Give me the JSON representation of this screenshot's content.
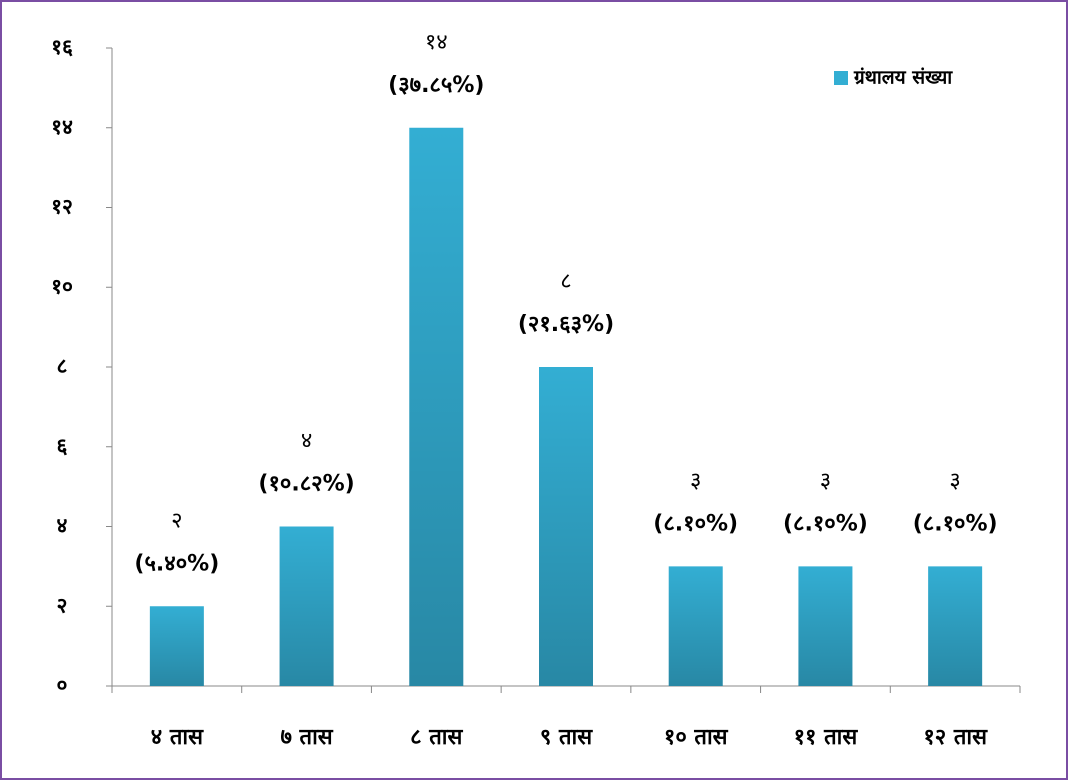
{
  "chart_data": {
    "type": "bar",
    "categories": [
      "४ तास",
      "७ तास",
      "८ तास",
      "९ तास",
      "१० तास",
      "११ तास",
      "१२ तास"
    ],
    "series": [
      {
        "name": "ग्रंथालय संख्या",
        "color": "#33aed3",
        "values": [
          2,
          4,
          14,
          8,
          3,
          3,
          3
        ],
        "value_labels": [
          "२",
          "४",
          "१४",
          "८",
          "३",
          "३",
          "३"
        ],
        "percentages": [
          5.4,
          10.82,
          37.85,
          21.63,
          8.1,
          8.1,
          8.1
        ],
        "percentage_labels": [
          "(५.४०%)",
          "(१०.८२%)",
          "(३७.८५%)",
          "(२१.६३%)",
          "(८.१०%)",
          "(८.१०%)",
          "(८.१०%)"
        ]
      }
    ],
    "ylim": [
      0,
      16
    ],
    "yticks": [
      {
        "value": 0,
        "label": "०"
      },
      {
        "value": 2,
        "label": "२"
      },
      {
        "value": 4,
        "label": "४"
      },
      {
        "value": 6,
        "label": "६"
      },
      {
        "value": 8,
        "label": "८"
      },
      {
        "value": 10,
        "label": "१०"
      },
      {
        "value": 12,
        "label": "१२"
      },
      {
        "value": 14,
        "label": "१४"
      },
      {
        "value": 16,
        "label": "१६"
      }
    ],
    "legend": "top-right"
  }
}
